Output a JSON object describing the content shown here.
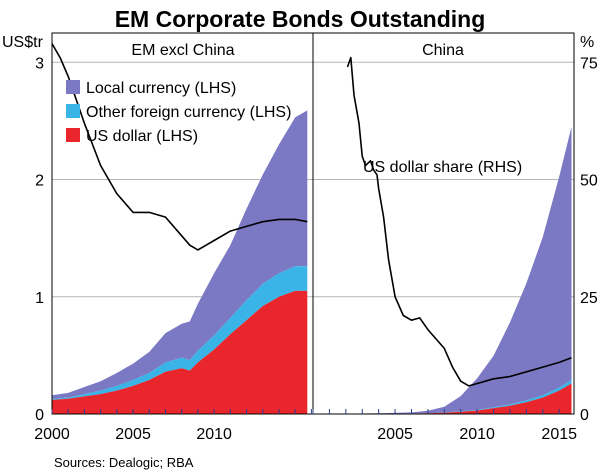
{
  "chart_data": {
    "type": "area",
    "title": "EM Corporate Bonds Outstanding",
    "left_axis_unit": "US$tr",
    "right_axis_unit": "%",
    "source": "Sources:  Dealogic; RBA",
    "left_axis_ticks": [
      "0",
      "1",
      "2",
      "3"
    ],
    "right_axis_ticks": [
      "0",
      "25",
      "50",
      "75"
    ],
    "ylim_left": [
      0,
      3.25
    ],
    "ylim_right": [
      0,
      81.25
    ],
    "grid": true,
    "legend": {
      "placement": "top-left",
      "entries": [
        {
          "label": "Local currency (LHS)",
          "color": "#7b78c4"
        },
        {
          "label": "Other foreign currency (LHS)",
          "color": "#3ab4e6"
        },
        {
          "label": "US dollar (LHS)",
          "color": "#e8262b"
        }
      ]
    },
    "colors": {
      "local": "#7b78c4",
      "other_fx": "#3ab4e6",
      "usd": "#e8262b",
      "line": "#000000"
    },
    "panels": [
      {
        "name": "EM excl China",
        "x_ticks": [
          "2000",
          "2005",
          "2010"
        ],
        "xlim": [
          2000,
          2016.1
        ],
        "x": [
          2000,
          2001,
          2002,
          2003,
          2004,
          2005,
          2006,
          2007,
          2008,
          2008.5,
          2009,
          2010,
          2011,
          2012,
          2013,
          2014,
          2015,
          2015.75
        ],
        "usd": [
          0.12,
          0.13,
          0.15,
          0.17,
          0.2,
          0.24,
          0.29,
          0.36,
          0.39,
          0.37,
          0.44,
          0.55,
          0.68,
          0.8,
          0.92,
          1.0,
          1.05,
          1.05
        ],
        "other_fx": [
          0.01,
          0.01,
          0.02,
          0.03,
          0.04,
          0.05,
          0.06,
          0.08,
          0.09,
          0.09,
          0.1,
          0.12,
          0.14,
          0.17,
          0.19,
          0.2,
          0.21,
          0.21
        ],
        "local": [
          0.03,
          0.04,
          0.06,
          0.08,
          0.11,
          0.14,
          0.18,
          0.25,
          0.29,
          0.33,
          0.4,
          0.53,
          0.62,
          0.78,
          0.93,
          1.1,
          1.27,
          1.33
        ],
        "usd_share_x": [
          2000,
          2000.5,
          2001,
          2002,
          2003,
          2004,
          2005,
          2006,
          2007,
          2008,
          2008.5,
          2009,
          2010,
          2011,
          2012,
          2013,
          2014,
          2015,
          2015.75
        ],
        "usd_share": [
          79,
          76,
          72,
          62,
          53,
          47,
          43,
          43,
          42,
          38,
          36,
          35,
          37,
          39,
          40,
          41,
          41.5,
          41.5,
          41
        ]
      },
      {
        "name": "China",
        "x_ticks": [
          "2005",
          "2010",
          "2015"
        ],
        "xlim": [
          2000,
          2015.9
        ],
        "x": [
          2002,
          2004,
          2006,
          2007,
          2008,
          2009,
          2010,
          2011,
          2012,
          2013,
          2014,
          2015,
          2015.75
        ],
        "usd": [
          0.001,
          0.002,
          0.004,
          0.006,
          0.01,
          0.02,
          0.03,
          0.05,
          0.07,
          0.1,
          0.14,
          0.2,
          0.26
        ],
        "other_fx": [
          0,
          0,
          0.001,
          0.001,
          0.002,
          0.003,
          0.005,
          0.008,
          0.012,
          0.016,
          0.02,
          0.025,
          0.03
        ],
        "local": [
          0.001,
          0.004,
          0.009,
          0.02,
          0.05,
          0.13,
          0.27,
          0.44,
          0.7,
          1.0,
          1.35,
          1.8,
          2.16
        ],
        "usd_share_x": [
          2002.1,
          2002.3,
          2002.5,
          2002.8,
          2003,
          2003.2,
          2003.5,
          2003.7,
          2003.9,
          2004,
          2004.3,
          2004.6,
          2005,
          2005.5,
          2006,
          2006.5,
          2007,
          2007.5,
          2008,
          2008.5,
          2009,
          2009.5,
          2010,
          2010.5,
          2011,
          2012,
          2013,
          2014,
          2015,
          2015.75
        ],
        "usd_share": [
          74,
          76,
          68,
          62,
          55,
          53,
          54,
          52,
          51,
          48,
          42,
          33,
          25,
          21,
          20,
          20.5,
          18,
          16,
          14,
          10,
          7,
          6,
          6.5,
          7,
          7.5,
          8,
          9,
          10,
          11,
          12
        ]
      }
    ],
    "annotation": "US dollar share (RHS)"
  }
}
